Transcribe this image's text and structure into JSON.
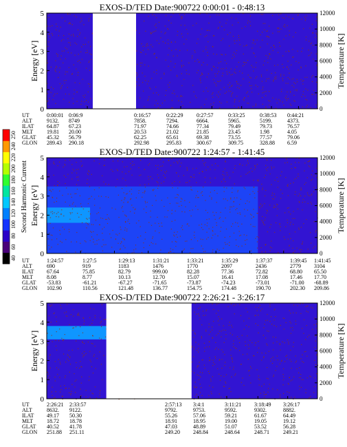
{
  "chart_data": [
    {
      "type": "heatmap",
      "title": "EXOS-D/TED   Date:900722   0:00:01 - 0:48:13",
      "ylabel": "Energy [eV]",
      "ylabel_right": "Temperature [K]",
      "ylim": [
        0,
        5
      ],
      "ylim_right": [
        0,
        12000
      ],
      "yticks": [
        "0",
        "1",
        "2",
        "3",
        "4",
        "5"
      ],
      "yticks_right": [
        "0",
        "2000",
        "4000",
        "6000",
        "8000",
        "10000",
        "12000"
      ],
      "row_labels": [
        "UT",
        "ALT",
        "ILAT",
        "MLT",
        "GLAT",
        "GLON"
      ],
      "columns": [
        {
          "pos": 0.0,
          "values": [
            "0:00:01",
            "9132.",
            "64.87",
            "19.81",
            "45.32",
            "289.43"
          ]
        },
        {
          "pos": 0.15,
          "values": [
            "0:06:9",
            "8749",
            "67.23",
            "20.00",
            "56.79",
            "290.18"
          ]
        },
        {
          "pos": 0.495,
          "values": [
            "0:16:57",
            "7858.",
            "71.97",
            "20.53",
            "62.25",
            "292.98"
          ]
        },
        {
          "pos": 0.61,
          "values": [
            "0:22:29",
            "7294.",
            "74.66",
            "21.02",
            "65.61",
            "295.83"
          ]
        },
        {
          "pos": 0.72,
          "values": [
            "0:27:57",
            "6664.",
            "77.34",
            "21.85",
            "69.38",
            "300.67"
          ]
        },
        {
          "pos": 0.83,
          "values": [
            "0:33:25",
            "5965.",
            "79.49",
            "23.45",
            "73.55",
            "309.75"
          ]
        },
        {
          "pos": 0.93,
          "values": [
            "0:38:53",
            "5199.",
            "79.73",
            "1.98",
            "77.57",
            "328.88"
          ]
        },
        {
          "pos": 1.04,
          "values": [
            "0:44:21",
            "4373.",
            "76.57",
            "4.05",
            "79.06",
            "6.59"
          ]
        }
      ],
      "data_gaps": [
        [
          0.17,
          0.33
        ]
      ],
      "bands": []
    },
    {
      "type": "heatmap",
      "title": "EXOS-D/TED   Date:900722   1:24:57 - 1:41:45",
      "ylabel": "Energy [eV]",
      "ylabel_right": "Temperature [K]",
      "ylim": [
        0,
        5
      ],
      "ylim_right": [
        0,
        12000
      ],
      "yticks": [
        "0",
        "1",
        "2",
        "3",
        "4",
        "5"
      ],
      "yticks_right": [
        "0",
        "2000",
        "4000",
        "6000",
        "8000",
        "10000",
        "12000"
      ],
      "row_labels": [
        "UT",
        "ALT",
        "ILAT",
        "MLT",
        "GLAT",
        "GLON"
      ],
      "columns": [
        {
          "pos": 0.0,
          "values": [
            "1:24:57",
            "690",
            "67.64",
            "8.08",
            "-53.83",
            "102.90"
          ]
        },
        {
          "pos": 0.125,
          "values": [
            "1:27:5",
            "919",
            "75.85",
            "8.77",
            "-61.21",
            "110.56"
          ]
        },
        {
          "pos": 0.25,
          "values": [
            "1:29:13",
            "1183",
            "82.79",
            "10.13",
            "-67.27",
            "121.48"
          ]
        },
        {
          "pos": 0.375,
          "values": [
            "1:31:21",
            "1476",
            "999.00",
            "12.70",
            "-71.65",
            "136.77"
          ]
        },
        {
          "pos": 0.5,
          "values": [
            "1:33:21",
            "1770",
            "82.28",
            "15.07",
            "-73.87",
            "154.75"
          ]
        },
        {
          "pos": 0.625,
          "values": [
            "1:35:29",
            "2097",
            "77.36",
            "16.41",
            "-74.23",
            "174.48"
          ]
        },
        {
          "pos": 0.75,
          "values": [
            "1:37:37",
            "2436",
            "72.82",
            "17.08",
            "-73.01",
            "190.70"
          ]
        },
        {
          "pos": 0.875,
          "values": [
            "1:39:45",
            "2779",
            "68.80",
            "17.46",
            "-71.00",
            "202.30"
          ]
        },
        {
          "pos": 1.0,
          "values": [
            "1:41:45",
            "3104",
            "65.50",
            "17.70",
            "-68.89",
            "209.86"
          ]
        }
      ],
      "data_gaps": [],
      "bands": [
        {
          "x0": 0.0,
          "x1": 0.78,
          "y0": 0.0,
          "y1": 3.5,
          "level": "mid"
        },
        {
          "x0": 0.0,
          "x1": 0.16,
          "y0": 1.6,
          "y1": 2.4,
          "level": "high"
        }
      ]
    },
    {
      "type": "heatmap",
      "title": "EXOS-D/TED   Date:900722   2:26:21 - 3:26:17",
      "ylabel": "Energy [eV]",
      "ylabel_right": "Temperature [K]",
      "ylim": [
        0,
        5
      ],
      "ylim_right": [
        0,
        12000
      ],
      "yticks": [
        "0",
        "1",
        "2",
        "3",
        "4",
        "5"
      ],
      "yticks_right": [
        "0",
        "2000",
        "4000",
        "6000",
        "8000",
        "10000",
        "12000"
      ],
      "row_labels": [
        "UT",
        "ALT",
        "ILAT",
        "MLT",
        "GLAT",
        "GLON"
      ],
      "columns": [
        {
          "pos": 0.0,
          "values": [
            "2:26:21",
            "8632.",
            "49.17",
            "18.72",
            "40.52",
            "251.88"
          ]
        },
        {
          "pos": 0.125,
          "values": [
            "2:33:57",
            "9122.",
            "50.30",
            "18.78",
            "41.78",
            "251.11"
          ]
        },
        {
          "pos": 0.56,
          "values": [
            "2:57:13",
            "9792.",
            "55.26",
            "18.91",
            "47.03",
            "249.20"
          ]
        },
        {
          "pos": 0.665,
          "values": [
            "3:4:1",
            "9753.",
            "57.06",
            "18.95",
            "48.89",
            "248.84"
          ]
        },
        {
          "pos": 0.78,
          "values": [
            "3:11:21",
            "9592.",
            "59.21",
            "19.00",
            "51.07",
            "248.64"
          ]
        },
        {
          "pos": 0.89,
          "values": [
            "3:18:49",
            "9302.",
            "61.67",
            "19.05",
            "53.52",
            "248.71"
          ]
        },
        {
          "pos": 1.0,
          "values": [
            "3:26:17",
            "8882.",
            "64.49",
            "19.12",
            "56.28",
            "249.21"
          ]
        }
      ],
      "data_gaps": [
        [
          0.22,
          0.535
        ]
      ],
      "bands": [
        {
          "x0": 0.0,
          "x1": 0.22,
          "y0": 3.1,
          "y1": 3.8,
          "level": "high"
        }
      ]
    }
  ],
  "colorbar": {
    "label": "Second Harmonic Current",
    "ticks": [
      "40",
      "60",
      "80",
      "100",
      "120",
      "140",
      "160",
      "180",
      "200",
      "220",
      "240",
      "250"
    ],
    "stops": [
      "#000000",
      "#4a007a",
      "#2b00c8",
      "#1433ff",
      "#0080ff",
      "#00c8ff",
      "#00e6a0",
      "#30ff30",
      "#b4ff00",
      "#ffff00",
      "#ff9900",
      "#ff0000"
    ]
  },
  "colors": {
    "background": "#3214d2",
    "band_mid": "#1d44f6",
    "band_high": "#0f96ff",
    "noise": "#8a3418",
    "gap": "#ffffff"
  }
}
